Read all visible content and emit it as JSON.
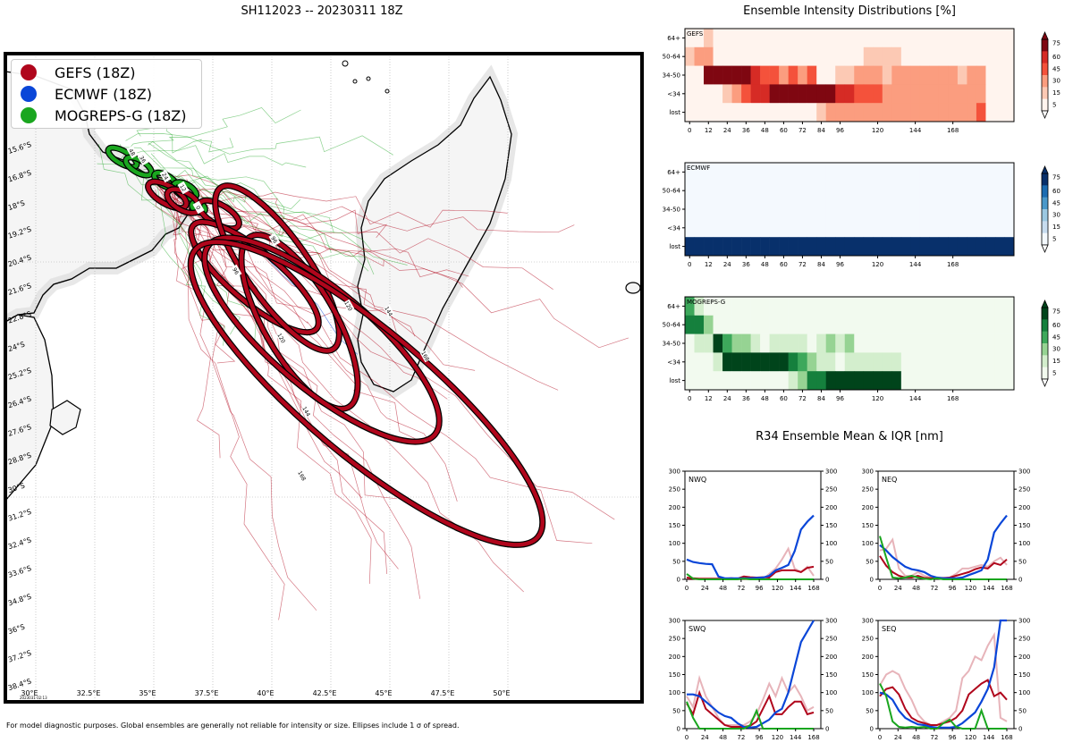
{
  "main_title": "SH112023 -- 20230311 18Z",
  "footer_note": "For model diagnostic purposes. Global ensembles are generally not reliable for intensity or size. Ellipses include 1 σ of spread.",
  "colors": {
    "gefs": "#b0061c",
    "ecmwf": "#0a46d8",
    "mogreps": "#1aa61f"
  },
  "map": {
    "legend": [
      "GEFS (18Z)",
      "ECMWF (18Z)",
      "MOGREPS-G (18Z)"
    ],
    "lat_labels": [
      "15.6°S",
      "16.8°S",
      "18°S",
      "19.2°S",
      "20.4°S",
      "21.6°S",
      "22.8°S",
      "24°S",
      "25.2°S",
      "26.4°S",
      "27.6°S",
      "28.8°S",
      "30°S",
      "31.2°S",
      "32.4°S",
      "33.6°S",
      "34.8°S",
      "36°S",
      "37.2°S",
      "38.4°S"
    ],
    "lon_labels": [
      "30°E",
      "32.5°E",
      "35°E",
      "37.5°E",
      "40°E",
      "42.5°E",
      "45°E",
      "47.5°E",
      "50°E"
    ],
    "ellipse_labels": [
      "96",
      "96",
      "120",
      "120",
      "144",
      "144",
      "168",
      "168",
      "48",
      "36",
      "24",
      "12",
      "0"
    ],
    "stamp": "2023031 02:13"
  },
  "intensity": {
    "title": "Ensemble Intensity Distributions [%]",
    "y_labels": [
      "64+",
      "50-64",
      "34-50",
      "<34",
      "lost"
    ],
    "x_labels": [
      "0",
      "12",
      "24",
      "36",
      "48",
      "60",
      "72",
      "84",
      "96",
      "120",
      "144",
      "168"
    ],
    "colorbar_ticks": [
      "75",
      "60",
      "45",
      "30",
      "15",
      "5"
    ],
    "panels": [
      {
        "name": "GEFS",
        "cmap": "red",
        "grid": [
          [
            0,
            0,
            1,
            0,
            0,
            0,
            0,
            0,
            0,
            0,
            0,
            0,
            0,
            0,
            0,
            0,
            0,
            0,
            0,
            0,
            0,
            0,
            0,
            0,
            0,
            0,
            0,
            0,
            0,
            0,
            0,
            0,
            0,
            0,
            0
          ],
          [
            1,
            2,
            2,
            0,
            0,
            0,
            0,
            0,
            0,
            0,
            0,
            0,
            0,
            0,
            0,
            0,
            0,
            0,
            0,
            1,
            1,
            1,
            1,
            0,
            0,
            0,
            0,
            0,
            0,
            0,
            0,
            0,
            0,
            0,
            0
          ],
          [
            0,
            0,
            5,
            5,
            5,
            5,
            5,
            4,
            3,
            3,
            2,
            3,
            2,
            3,
            0,
            0,
            1,
            1,
            2,
            2,
            2,
            1,
            2,
            2,
            2,
            2,
            2,
            2,
            2,
            1,
            2,
            2,
            0,
            0,
            0
          ],
          [
            0,
            0,
            0,
            0,
            1,
            2,
            3,
            4,
            4,
            5,
            5,
            5,
            5,
            5,
            5,
            5,
            4,
            4,
            3,
            3,
            3,
            2,
            2,
            2,
            2,
            2,
            2,
            2,
            2,
            2,
            2,
            2,
            0,
            0,
            0
          ],
          [
            0,
            0,
            0,
            0,
            0,
            0,
            0,
            0,
            0,
            0,
            0,
            0,
            0,
            0,
            1,
            2,
            2,
            2,
            2,
            2,
            2,
            2,
            2,
            2,
            2,
            2,
            2,
            2,
            2,
            2,
            2,
            3,
            0,
            0,
            0
          ]
        ]
      },
      {
        "name": "ECMWF",
        "cmap": "blue",
        "grid": [
          [
            0,
            0,
            0,
            0,
            0,
            0,
            0,
            0,
            0,
            0,
            0,
            0,
            0,
            0,
            0,
            0,
            0,
            0,
            0,
            0,
            0,
            0,
            0,
            0,
            0,
            0,
            0,
            0,
            0,
            0,
            0,
            0,
            0,
            0,
            0
          ],
          [
            0,
            0,
            0,
            0,
            0,
            0,
            0,
            0,
            0,
            0,
            0,
            0,
            0,
            0,
            0,
            0,
            0,
            0,
            0,
            0,
            0,
            0,
            0,
            0,
            0,
            0,
            0,
            0,
            0,
            0,
            0,
            0,
            0,
            0,
            0
          ],
          [
            0,
            0,
            0,
            0,
            0,
            0,
            0,
            0,
            0,
            0,
            0,
            0,
            0,
            0,
            0,
            0,
            0,
            0,
            0,
            0,
            0,
            0,
            0,
            0,
            0,
            0,
            0,
            0,
            0,
            0,
            0,
            0,
            0,
            0,
            0
          ],
          [
            0,
            0,
            0,
            0,
            0,
            0,
            0,
            0,
            0,
            0,
            0,
            0,
            0,
            0,
            0,
            0,
            0,
            0,
            0,
            0,
            0,
            0,
            0,
            0,
            0,
            0,
            0,
            0,
            0,
            0,
            0,
            0,
            0,
            0,
            0
          ],
          [
            5,
            5,
            5,
            5,
            5,
            5,
            5,
            5,
            5,
            5,
            5,
            5,
            5,
            5,
            5,
            5,
            5,
            5,
            5,
            5,
            5,
            5,
            5,
            5,
            5,
            5,
            5,
            5,
            5,
            5,
            5,
            5,
            5,
            5,
            5
          ]
        ]
      },
      {
        "name": "MOGREPS-G",
        "cmap": "green",
        "grid": [
          [
            3,
            1,
            0,
            0,
            0,
            0,
            0,
            0,
            0,
            0,
            0,
            0,
            0,
            0,
            0,
            0,
            0,
            0,
            0,
            0,
            0,
            0,
            0,
            0,
            0,
            0,
            0,
            0,
            0,
            0,
            0,
            0,
            0,
            0,
            0
          ],
          [
            4,
            4,
            2,
            0,
            0,
            0,
            0,
            0,
            0,
            0,
            0,
            0,
            0,
            0,
            0,
            0,
            0,
            0,
            0,
            0,
            0,
            0,
            0,
            0,
            0,
            0,
            0,
            0,
            0,
            0,
            0,
            0,
            0,
            0,
            0
          ],
          [
            0,
            1,
            1,
            5,
            3,
            2,
            2,
            1,
            0,
            1,
            1,
            1,
            1,
            0,
            1,
            2,
            1,
            2,
            0,
            0,
            0,
            0,
            0,
            0,
            0,
            0,
            0,
            0,
            0,
            0,
            0,
            0,
            0,
            0,
            0
          ],
          [
            0,
            0,
            0,
            1,
            5,
            5,
            5,
            5,
            5,
            5,
            5,
            4,
            3,
            2,
            1,
            1,
            0,
            1,
            1,
            1,
            1,
            1,
            1,
            0,
            0,
            0,
            0,
            0,
            0,
            0,
            0,
            0,
            0,
            0,
            0
          ],
          [
            0,
            0,
            0,
            0,
            0,
            0,
            0,
            0,
            0,
            0,
            0,
            1,
            2,
            4,
            4,
            5,
            5,
            5,
            5,
            5,
            5,
            5,
            5,
            0,
            0,
            0,
            0,
            0,
            0,
            0,
            0,
            0,
            0,
            0,
            0
          ]
        ]
      }
    ]
  },
  "r34": {
    "title": "R34 Ensemble Mean & IQR [nm]",
    "y_ticks": [
      "0",
      "50",
      "100",
      "150",
      "200",
      "250",
      "300"
    ],
    "x_ticks": [
      "0",
      "24",
      "48",
      "72",
      "96",
      "120",
      "144",
      "168"
    ],
    "quadrants": [
      {
        "name": "NWQ",
        "gefs": [
          5,
          3,
          2,
          2,
          2,
          2,
          2,
          3,
          2,
          8,
          6,
          5,
          6,
          5,
          20,
          25,
          25,
          25,
          20,
          32,
          35
        ],
        "gefs_iqr": [
          0,
          0,
          0,
          0,
          0,
          0,
          0,
          0,
          0,
          0,
          0,
          0,
          0,
          15,
          30,
          55,
          85,
          30,
          20,
          35,
          10
        ],
        "ecmwf": [
          55,
          48,
          45,
          43,
          42,
          8,
          3,
          3,
          3,
          3,
          3,
          4,
          5,
          10,
          25,
          32,
          40,
          78,
          138,
          160,
          177
        ],
        "mogreps": [
          15,
          2,
          0,
          0,
          0,
          0,
          0,
          0,
          0,
          2,
          0,
          0,
          0,
          0,
          0,
          0,
          0,
          0,
          0,
          0,
          0
        ]
      },
      {
        "name": "NEQ",
        "gefs": [
          65,
          38,
          20,
          10,
          5,
          5,
          10,
          4,
          3,
          3,
          3,
          5,
          10,
          15,
          20,
          28,
          33,
          30,
          45,
          40,
          55
        ],
        "gefs_iqr": [
          80,
          85,
          110,
          30,
          10,
          10,
          20,
          10,
          5,
          5,
          5,
          5,
          15,
          30,
          30,
          35,
          40,
          35,
          50,
          60,
          40
        ],
        "ecmwf": [
          95,
          80,
          62,
          48,
          35,
          28,
          25,
          20,
          10,
          5,
          3,
          3,
          3,
          5,
          12,
          18,
          25,
          55,
          130,
          155,
          177
        ],
        "mogreps": [
          120,
          60,
          5,
          3,
          5,
          10,
          5,
          2,
          0,
          3,
          0,
          0,
          0,
          0,
          0,
          0,
          0,
          0,
          0,
          0,
          0
        ]
      },
      {
        "name": "SWQ",
        "gefs": [
          70,
          40,
          100,
          55,
          40,
          25,
          10,
          5,
          5,
          5,
          8,
          20,
          55,
          90,
          40,
          40,
          60,
          75,
          75,
          40,
          45
        ],
        "gefs_iqr": [
          90,
          60,
          140,
          90,
          60,
          30,
          10,
          10,
          10,
          10,
          20,
          40,
          80,
          125,
          90,
          140,
          100,
          120,
          90,
          50,
          60
        ],
        "ecmwf": [
          95,
          95,
          90,
          75,
          60,
          45,
          35,
          30,
          15,
          5,
          3,
          5,
          15,
          25,
          45,
          55,
          100,
          170,
          240,
          270,
          300
        ],
        "mogreps": [
          75,
          30,
          0,
          0,
          0,
          0,
          0,
          0,
          0,
          0,
          10,
          50,
          0,
          0,
          0,
          0,
          0,
          0,
          0,
          0,
          0
        ]
      },
      {
        "name": "SEQ",
        "gefs": [
          90,
          110,
          115,
          95,
          55,
          30,
          20,
          15,
          10,
          10,
          15,
          20,
          30,
          50,
          95,
          110,
          125,
          135,
          90,
          100,
          80
        ],
        "gefs_iqr": [
          120,
          150,
          160,
          150,
          110,
          80,
          40,
          20,
          10,
          10,
          20,
          30,
          50,
          140,
          160,
          200,
          190,
          230,
          260,
          30,
          20
        ],
        "ecmwf": [
          100,
          95,
          80,
          50,
          30,
          20,
          12,
          10,
          5,
          3,
          3,
          3,
          5,
          15,
          30,
          45,
          75,
          110,
          170,
          300,
          300
        ],
        "mogreps": [
          125,
          90,
          20,
          5,
          3,
          5,
          3,
          5,
          0,
          0,
          15,
          25,
          5,
          0,
          0,
          0,
          50,
          0,
          0,
          0,
          0
        ]
      }
    ]
  }
}
